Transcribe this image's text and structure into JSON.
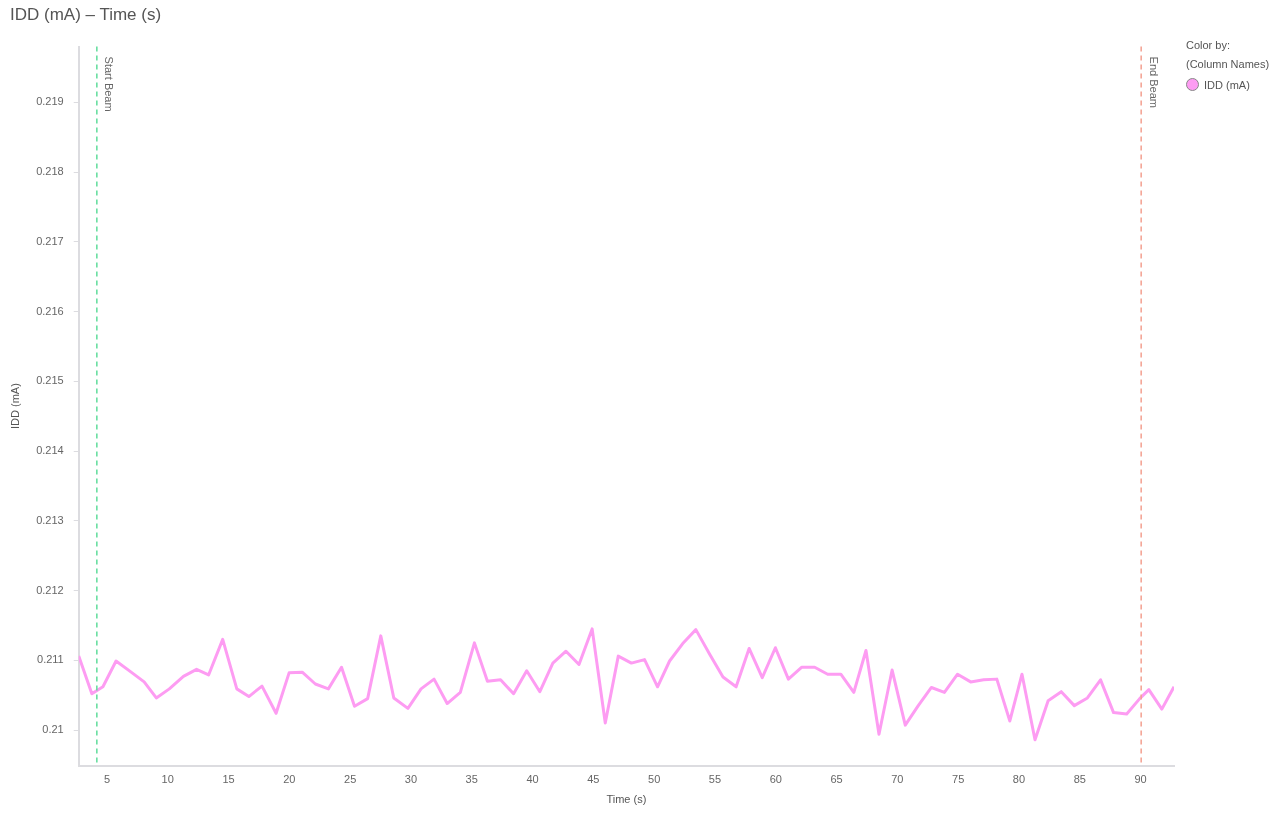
{
  "chart_data": {
    "type": "line",
    "title": "IDD (mA) – Time (s)",
    "xlabel": "Time (s)",
    "ylabel": "IDD (mA)",
    "legend_title": "Color by: (Column Names)",
    "legend": "top right",
    "grid": false,
    "marker": "none",
    "line_style": "solid",
    "x": [
      2.68,
      3.76,
      4.67,
      5.75,
      6.99,
      8.06,
      9.06,
      10.13,
      11.29,
      12.37,
      13.36,
      14.52,
      15.68,
      16.67,
      17.75,
      18.91,
      19.98,
      21.06,
      22.14,
      23.21,
      24.29,
      25.36,
      26.44,
      27.52,
      28.59,
      29.75,
      30.83,
      31.9,
      32.98,
      34.06,
      35.22,
      36.29,
      37.37,
      38.44,
      39.52,
      40.6,
      41.67,
      42.75,
      43.82,
      44.9,
      45.98,
      47.05,
      48.13,
      49.21,
      50.28,
      51.27,
      52.35,
      53.43,
      54.59,
      55.66,
      56.74,
      57.81,
      58.89,
      59.97,
      61.04,
      62.12,
      63.2,
      64.27,
      65.35,
      66.42,
      67.42,
      68.49,
      69.57,
      70.65,
      71.72,
      72.8,
      73.87,
      74.95,
      76.03,
      77.1,
      78.18,
      79.25,
      80.25,
      81.32,
      82.4,
      83.48,
      84.55,
      85.63,
      86.71,
      87.78,
      88.86,
      89.93,
      90.68,
      91.75,
      92.75
    ],
    "series": [
      {
        "name": "IDD (mA)",
        "color": "#fd9cf2",
        "values": [
          0.21106,
          0.21052,
          0.21062,
          0.21099,
          0.21083,
          0.21069,
          0.21046,
          0.21059,
          0.21077,
          0.21087,
          0.21079,
          0.2113,
          0.21059,
          0.21048,
          0.21063,
          0.21024,
          0.21082,
          0.21083,
          0.21066,
          0.21059,
          0.2109,
          0.21034,
          0.21045,
          0.21135,
          0.21046,
          0.21031,
          0.21059,
          0.21073,
          0.21038,
          0.21054,
          0.21125,
          0.2107,
          0.21072,
          0.21052,
          0.21085,
          0.21055,
          0.21096,
          0.21113,
          0.21094,
          0.21145,
          0.2101,
          0.21106,
          0.21096,
          0.21101,
          0.21062,
          0.21099,
          0.21124,
          0.21144,
          0.21108,
          0.21076,
          0.21062,
          0.21117,
          0.21075,
          0.21118,
          0.21073,
          0.2109,
          0.2109,
          0.2108,
          0.2108,
          0.21054,
          0.21114,
          0.20994,
          0.21086,
          0.21007,
          0.21035,
          0.21061,
          0.21054,
          0.2108,
          0.21069,
          0.21072,
          0.21073,
          0.21013,
          0.2108,
          0.20986,
          0.21042,
          0.21055,
          0.21035,
          0.21046,
          0.21072,
          0.21025,
          0.21023,
          0.21045,
          0.21058,
          0.2103,
          0.21062
        ]
      }
    ],
    "xlim": [
      2.68,
      92.75
    ],
    "xticks": [
      5,
      10,
      15,
      20,
      25,
      30,
      35,
      40,
      45,
      50,
      55,
      60,
      65,
      70,
      75,
      80,
      85,
      90
    ],
    "ylim": [
      0.20949,
      0.2198
    ],
    "yticks": [
      0.21,
      0.211,
      0.212,
      0.213,
      0.214,
      0.215,
      0.216,
      0.217,
      0.218,
      0.219
    ],
    "ref_lines": [
      {
        "axis": "x",
        "value": 4.17,
        "label": "Start Beam",
        "color": "#5fdc9a",
        "line_style": "dashed"
      },
      {
        "axis": "x",
        "value": 90.05,
        "label": "End Beam",
        "color": "#f4a090",
        "line_style": "dashed"
      }
    ]
  }
}
